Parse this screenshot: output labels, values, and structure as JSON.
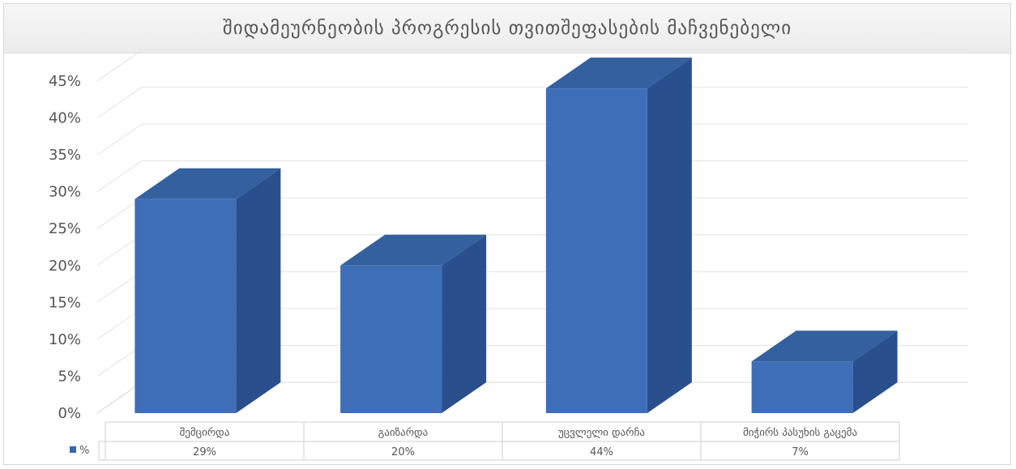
{
  "chart_data": {
    "type": "bar",
    "title": "შიდამეურნეობის პროგრესის თვითშეფასების მაჩვენებელი",
    "categories": [
      "შემცირდა",
      "გაიზარდა",
      "უცვლელი დარჩა",
      "მიჭირს პასუხის გაცემა"
    ],
    "series": [
      {
        "name": "%",
        "values": [
          29,
          20,
          44,
          7
        ],
        "labels": [
          "29%",
          "20%",
          "44%",
          "7%"
        ]
      }
    ],
    "y_ticks": [
      "0%",
      "5%",
      "10%",
      "15%",
      "20%",
      "25%",
      "30%",
      "35%",
      "40%",
      "45%"
    ],
    "ylim": [
      0,
      45
    ],
    "grid": true,
    "legend": "data-table",
    "colors": {
      "bar_front": "#3f6eb8",
      "bar_side": "#2a4f8d",
      "bar_top": "#35609f",
      "legend_key": "#3a65ad"
    }
  }
}
